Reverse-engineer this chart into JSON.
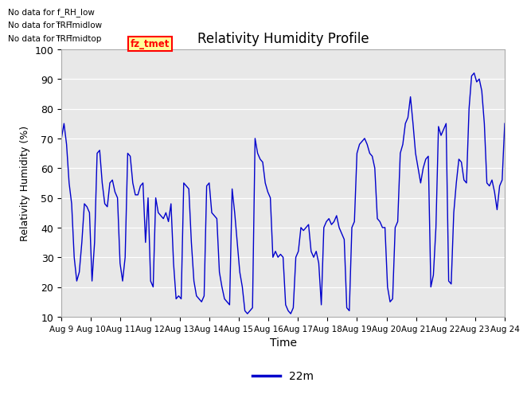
{
  "title": "Relativity Humidity Profile",
  "xlabel": "Time",
  "ylabel": "Relativity Humidity (%)",
  "ylim": [
    10,
    100
  ],
  "legend_label": "22m",
  "legend_color": "#0000cc",
  "no_data_lines": [
    "No data for f_RH_low",
    "No data for f̅RH̅midlow",
    "No data for f̅RH̅midtop"
  ],
  "fz_tmet_label": "fz_tmet",
  "x_tick_labels": [
    "Aug 9",
    "Aug 10",
    "Aug 11",
    "Aug 12",
    "Aug 13",
    "Aug 14",
    "Aug 15",
    "Aug 16",
    "Aug 17",
    "Aug 18",
    "Aug 19",
    "Aug 20",
    "Aug 21",
    "Aug 22",
    "Aug 23",
    "Aug 24"
  ],
  "line_color": "#0000cc",
  "plot_bg": "#e8e8e8",
  "y_values": [
    70,
    75,
    68,
    55,
    48,
    30,
    22,
    25,
    35,
    48,
    47,
    45,
    22,
    35,
    65,
    66,
    55,
    48,
    47,
    55,
    56,
    52,
    50,
    28,
    22,
    30,
    65,
    64,
    55,
    51,
    51,
    54,
    55,
    35,
    50,
    22,
    20,
    50,
    45,
    44,
    43,
    45,
    42,
    48,
    28,
    16,
    17,
    16,
    55,
    54,
    53,
    35,
    22,
    17,
    16,
    15,
    17,
    54,
    55,
    45,
    44,
    43,
    25,
    20,
    16,
    15,
    14,
    53,
    45,
    35,
    25,
    20,
    12,
    11,
    12,
    13,
    70,
    65,
    63,
    62,
    55,
    52,
    50,
    30,
    32,
    30,
    31,
    30,
    14,
    12,
    11,
    13,
    30,
    32,
    40,
    39,
    40,
    41,
    32,
    30,
    32,
    28,
    14,
    40,
    42,
    43,
    41,
    42,
    44,
    40,
    38,
    36,
    13,
    12,
    40,
    42,
    65,
    68,
    69,
    70,
    68,
    65,
    64,
    60,
    43,
    42,
    40,
    40,
    20,
    15,
    16,
    40,
    42,
    65,
    68,
    75,
    77,
    84,
    75,
    65,
    60,
    55,
    60,
    63,
    64,
    20,
    24,
    40,
    74,
    71,
    73,
    75,
    22,
    21,
    45,
    55,
    63,
    62,
    56,
    55,
    80,
    91,
    92,
    89,
    90,
    86,
    75,
    55,
    54,
    56,
    52,
    46,
    54,
    56,
    75
  ]
}
